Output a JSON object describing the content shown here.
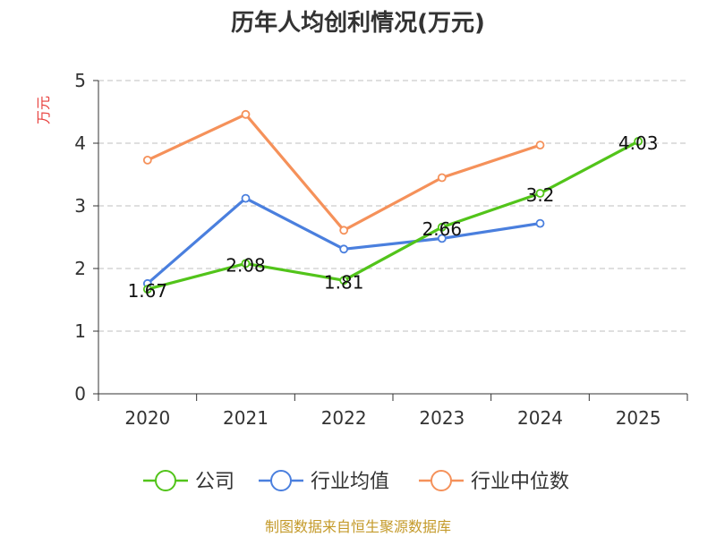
{
  "chart_data": {
    "type": "line",
    "title": "历年人均创利情况(万元)",
    "xlabel": "",
    "ylabel": "万元",
    "categories": [
      "2020",
      "2021",
      "2022",
      "2023",
      "2024",
      "2025"
    ],
    "yticks": [
      "0",
      "1",
      "2",
      "3",
      "4",
      "5"
    ],
    "ylim": [
      0,
      5
    ],
    "grid": true,
    "legend_position": "bottom",
    "series": [
      {
        "name": "公司",
        "color": "#52c41a",
        "values": [
          1.67,
          2.08,
          1.81,
          2.66,
          3.2,
          4.03
        ],
        "labels": [
          "1.67",
          "2.08",
          "1.81",
          "2.66",
          "3.2",
          "4.03"
        ]
      },
      {
        "name": "行业均值",
        "color": "#4a7fde",
        "values": [
          1.76,
          3.12,
          2.31,
          2.48,
          2.72,
          null
        ]
      },
      {
        "name": "行业中位数",
        "color": "#f5915a",
        "values": [
          3.73,
          4.46,
          2.61,
          3.45,
          3.97,
          null
        ]
      }
    ]
  },
  "source": "制图数据来自恒生聚源数据库"
}
